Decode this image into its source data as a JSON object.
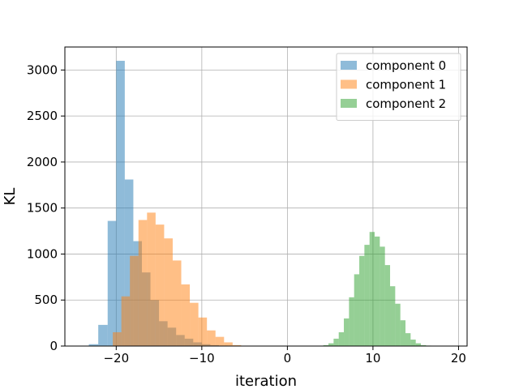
{
  "chart_data": {
    "type": "histogram",
    "title": "",
    "xlabel": "iteration",
    "ylabel": "KL",
    "xlim": [
      -26,
      21
    ],
    "ylim": [
      0,
      3250
    ],
    "xticks": [
      -20,
      -10,
      0,
      10,
      20
    ],
    "xtick_labels": [
      "−20",
      "−10",
      "0",
      "10",
      "20"
    ],
    "yticks": [
      0,
      500,
      1000,
      1500,
      2000,
      2500,
      3000
    ],
    "ytick_labels": [
      "0",
      "500",
      "1000",
      "1500",
      "2000",
      "2500",
      "3000"
    ],
    "grid": true,
    "legend_position": "upper right",
    "alpha": 0.5,
    "series": [
      {
        "name": "component 0",
        "color": "#1f77b4",
        "bin_edges": [
          -23.2,
          -22.1,
          -21.0,
          -20.0,
          -19.0,
          -18.0,
          -17.0,
          -16.0,
          -15.0,
          -14.0,
          -13.0,
          -12.0,
          -11.0,
          -10.0,
          -9.0,
          -8.0,
          -7.0,
          -6.0,
          -5.0
        ],
        "counts": [
          20,
          230,
          1360,
          3100,
          1810,
          1140,
          800,
          500,
          270,
          200,
          120,
          80,
          40,
          20,
          10,
          5,
          3,
          2
        ]
      },
      {
        "name": "component 1",
        "color": "#ff7f0e",
        "bin_edges": [
          -20.4,
          -19.4,
          -18.4,
          -17.4,
          -16.4,
          -15.4,
          -14.4,
          -13.4,
          -12.4,
          -11.4,
          -10.4,
          -9.4,
          -8.4,
          -7.4,
          -6.4,
          -5.4
        ],
        "counts": [
          150,
          540,
          980,
          1370,
          1450,
          1320,
          1170,
          930,
          670,
          470,
          310,
          170,
          100,
          40,
          10
        ]
      },
      {
        "name": "component 2",
        "color": "#2ca02c",
        "bin_edges": [
          4.2,
          4.8,
          5.4,
          6.0,
          6.6,
          7.2,
          7.8,
          8.4,
          9.0,
          9.6,
          10.2,
          10.8,
          11.4,
          12.0,
          12.6,
          13.2,
          13.8,
          14.4,
          15.0,
          15.6,
          16.2,
          16.8,
          17.4
        ],
        "counts": [
          10,
          30,
          80,
          150,
          300,
          530,
          780,
          980,
          1100,
          1240,
          1190,
          1080,
          880,
          650,
          460,
          280,
          140,
          70,
          30,
          10,
          5,
          2
        ]
      }
    ]
  }
}
